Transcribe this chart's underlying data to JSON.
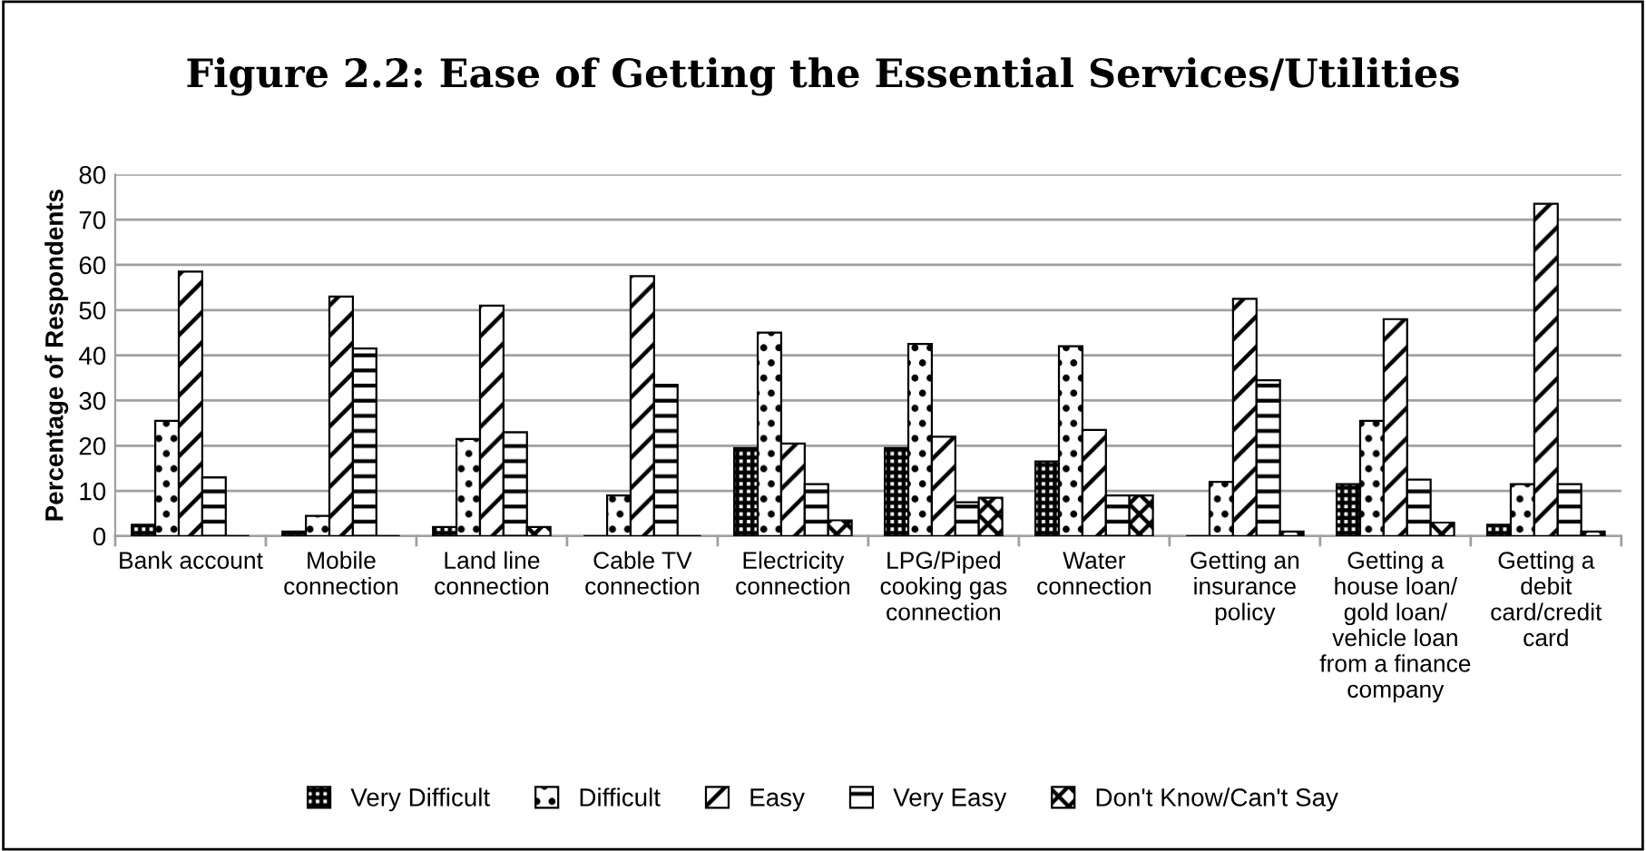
{
  "chart_data": {
    "type": "bar",
    "title": "Figure 2.2: Ease of Getting the Essential Services/Utilities",
    "ylabel": "Percentage of Respondents",
    "categories": [
      "Bank account",
      "Mobile\nconnection",
      "Land line\nconnection",
      "Cable TV\nconnection",
      "Electricity\nconnection",
      "LPG/Piped\ncooking gas\nconnection",
      "Water\nconnection",
      "Getting an\ninsurance\npolicy",
      "Getting a\nhouse loan/\ngold loan/\nvehicle loan\nfrom a finance\ncompany",
      "Getting a\ndebit\ncard/credit\ncard"
    ],
    "series": [
      {
        "name": "Very Difficult",
        "color": "#000000",
        "values": [
          2.5,
          1,
          2,
          0,
          19.5,
          19.5,
          16.5,
          0,
          11.5,
          2.5
        ]
      },
      {
        "name": "Difficult",
        "color": "#000000",
        "values": [
          25.5,
          4.5,
          21.5,
          9,
          45,
          42.5,
          42,
          12,
          25.5,
          11.5
        ]
      },
      {
        "name": "Easy",
        "color": "#000000",
        "values": [
          58.5,
          53,
          51,
          57.5,
          20.5,
          22,
          23.5,
          52.5,
          48,
          73.5
        ]
      },
      {
        "name": "Very Easy",
        "color": "#000000",
        "values": [
          13,
          41.5,
          23,
          33.5,
          11.5,
          7.5,
          9,
          34.5,
          12.5,
          11.5
        ]
      },
      {
        "name": "Don't Know/Can't Say",
        "color": "#000000",
        "values": [
          0,
          0,
          2,
          0,
          3.5,
          8.5,
          9,
          1,
          3,
          1
        ]
      }
    ],
    "ylim": [
      0,
      80
    ],
    "yticks": [
      0,
      10,
      20,
      30,
      40,
      50,
      60,
      70,
      80
    ],
    "grid": "y",
    "legend": "bottom"
  }
}
